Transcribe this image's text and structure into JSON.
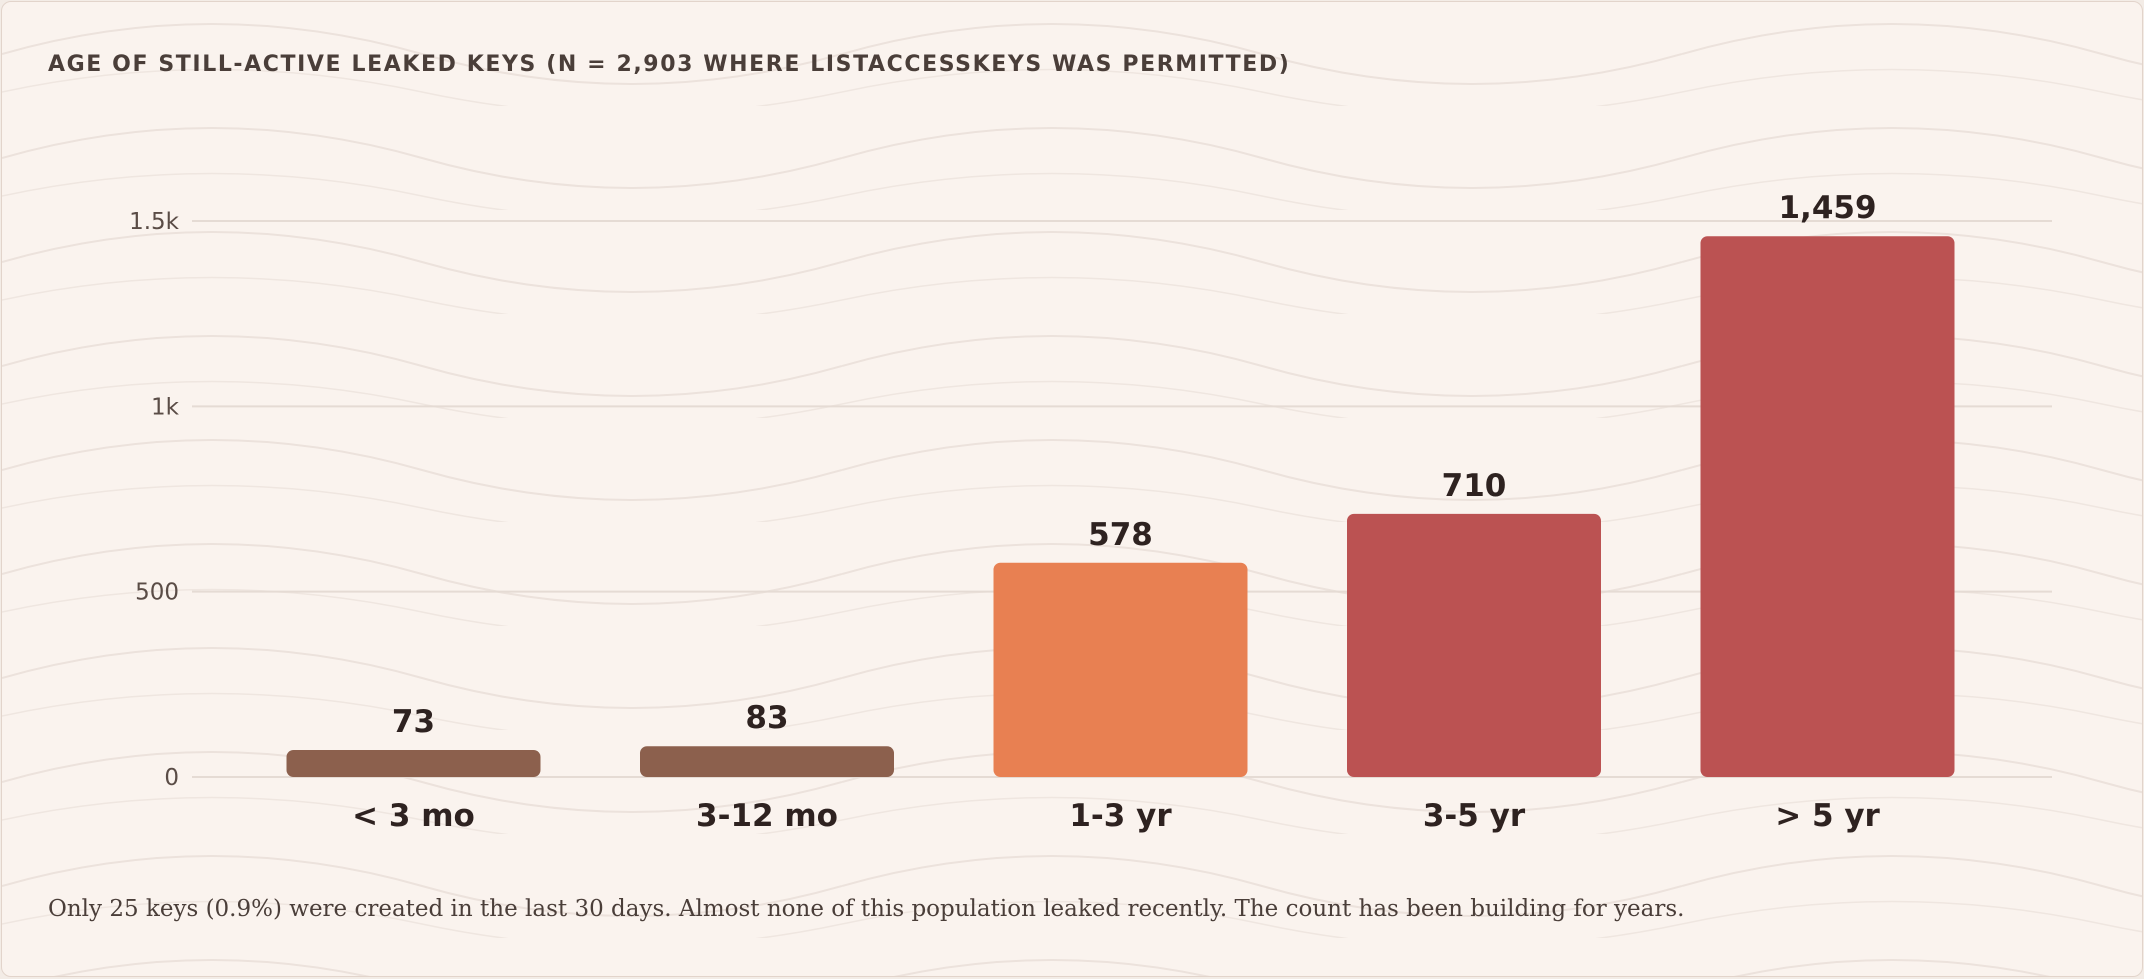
{
  "colors": {
    "background": "#faf3ee",
    "grid": "#e5dbd4",
    "recent": "#8c604d",
    "mid": "#e88052",
    "old": "#bb5252",
    "text_dark": "#2e2220",
    "text_axis": "#5a4c46"
  },
  "chart_data": {
    "type": "bar",
    "title": "AGE OF STILL-ACTIVE LEAKED KEYS (N = 2,903 WHERE LISTACCESSKEYS WAS PERMITTED)",
    "categories": [
      "< 3 mo",
      "3-12 mo",
      "1-3 yr",
      "3-5 yr",
      "> 5 yr"
    ],
    "values": [
      73,
      83,
      578,
      710,
      1459
    ],
    "value_labels": [
      "73",
      "83",
      "578",
      "710",
      "1,459"
    ],
    "bar_colors": [
      "#8c604d",
      "#8c604d",
      "#e88052",
      "#bb5252",
      "#bb5252"
    ],
    "y_ticks": [
      0,
      500,
      1000,
      1500
    ],
    "y_tick_labels": [
      "0",
      "500",
      "1k",
      "1.5k"
    ],
    "ylim": [
      0,
      1600
    ],
    "grid": true,
    "legend": "none"
  },
  "caption": "Only 25 keys (0.9%) were created in the last 30 days. Almost none of this population leaked recently. The count has been building for years."
}
